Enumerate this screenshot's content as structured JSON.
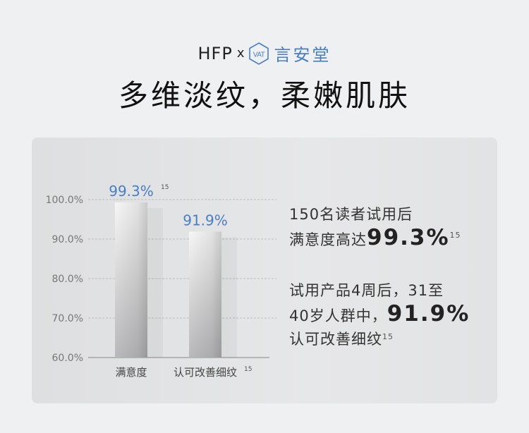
{
  "header": {
    "brand_left": "HFP",
    "brand_x": "x",
    "brand_logo_text": "VAT",
    "brand_right": "言安堂",
    "title": "多维淡纹，柔嫩肌肤"
  },
  "colors": {
    "accent": "#4a7ec4",
    "text": "#222222",
    "axis": "#777777"
  },
  "chart_data": {
    "type": "bar",
    "categories": [
      "满意度",
      "认可改善细纹"
    ],
    "category_superscripts": [
      "",
      "15"
    ],
    "values": [
      99.3,
      91.9
    ],
    "data_labels": [
      "99.3%",
      "91.9%"
    ],
    "data_label_superscripts": [
      "15",
      ""
    ],
    "ylim": [
      60,
      100
    ],
    "yticks": [
      "100.0%",
      "90.0%",
      "80.0%",
      "70.0%",
      "60.0%"
    ],
    "ytick_values": [
      100,
      90,
      80,
      70,
      60
    ],
    "grid": true
  },
  "notes": [
    {
      "line1": "150名读者试用后",
      "line2_prefix": "满意度高达",
      "line2_value": "99.3%",
      "sup": "15"
    },
    {
      "line1": "试用产品4周后，31至",
      "line2_prefix": "40岁人群中，",
      "line2_value": "91.9%",
      "line3": "认可改善细纹",
      "sup": "15"
    }
  ]
}
